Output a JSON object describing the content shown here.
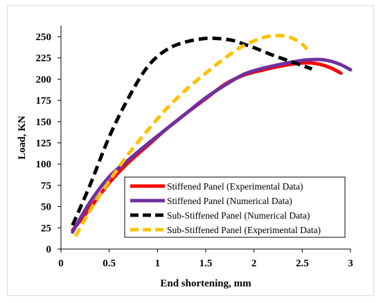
{
  "chart_data": {
    "type": "line",
    "title": "",
    "xlabel": "End shortening, mm",
    "ylabel": "Load, KN",
    "xlim": [
      0,
      3
    ],
    "ylim": [
      0,
      250
    ],
    "xticks": [
      0,
      0.5,
      1,
      1.5,
      2,
      2.5,
      3
    ],
    "xtick_labels": [
      "0",
      "0.5",
      "1",
      "1.5",
      "2",
      "2.5",
      "3"
    ],
    "yticks": [
      0,
      25,
      50,
      75,
      100,
      125,
      150,
      175,
      200,
      225,
      250
    ],
    "ytick_labels": [
      "0",
      "25",
      "50",
      "75",
      "100",
      "125",
      "150",
      "175",
      "200",
      "225",
      "250"
    ],
    "grid": false,
    "legend_position": "bottom-right",
    "series": [
      {
        "name": "Stiffened Panel (Experimental Data)",
        "color": "#ff0000",
        "dash": "solid",
        "x": [
          0.12,
          0.3,
          0.5,
          0.7,
          0.9,
          1.1,
          1.3,
          1.5,
          1.7,
          1.9,
          2.1,
          2.3,
          2.5,
          2.6,
          2.7,
          2.8,
          2.9
        ],
        "y": [
          22,
          48,
          78,
          102,
          122,
          142,
          160,
          177,
          194,
          205,
          211,
          216,
          219,
          219,
          217,
          213,
          207
        ]
      },
      {
        "name": "Stiffened Panel (Numerical Data)",
        "color": "#7030a0",
        "dash": "solid",
        "x": [
          0.12,
          0.3,
          0.5,
          0.7,
          0.9,
          1.1,
          1.3,
          1.5,
          1.7,
          1.9,
          2.1,
          2.3,
          2.5,
          2.6,
          2.7,
          2.8,
          2.9,
          3.0
        ],
        "y": [
          20,
          55,
          85,
          105,
          124,
          142,
          160,
          178,
          193,
          206,
          213,
          218,
          222,
          223,
          223,
          221,
          217,
          211
        ]
      },
      {
        "name": "Sub-Stiffened Panel (Numerical Data)",
        "color": "#000000",
        "dash": "dashed",
        "x": [
          0.12,
          0.3,
          0.5,
          0.7,
          0.9,
          1.1,
          1.3,
          1.5,
          1.6,
          1.7,
          1.8,
          1.9,
          2.0,
          2.2,
          2.4,
          2.6
        ],
        "y": [
          28,
          75,
          132,
          178,
          215,
          235,
          244,
          248,
          248,
          247,
          245,
          241,
          237,
          228,
          220,
          212
        ]
      },
      {
        "name": "Sub-Stiffened Panel (Experimental Data)",
        "color": "#ffc000",
        "dash": "dashed",
        "x": [
          0.15,
          0.3,
          0.5,
          0.7,
          0.9,
          1.1,
          1.3,
          1.5,
          1.7,
          1.9,
          2.1,
          2.2,
          2.3,
          2.4,
          2.5,
          2.55
        ],
        "y": [
          15,
          45,
          80,
          112,
          140,
          166,
          188,
          207,
          225,
          240,
          249,
          251,
          251,
          248,
          241,
          235
        ]
      }
    ]
  }
}
